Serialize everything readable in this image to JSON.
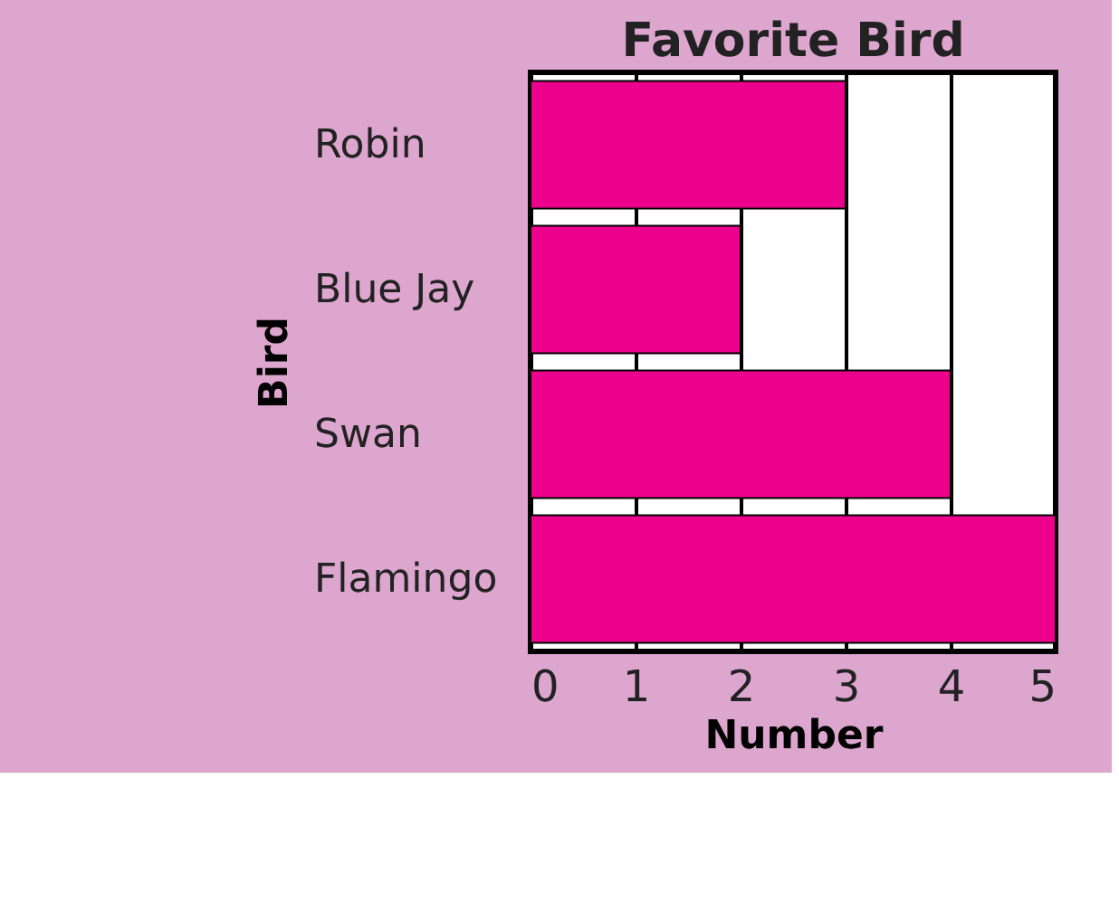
{
  "chart_data": {
    "type": "bar",
    "orientation": "horizontal",
    "title": "Favorite Bird",
    "xlabel": "Number",
    "ylabel": "Bird",
    "categories": [
      "Robin",
      "Blue Jay",
      "Swan",
      "Flamingo"
    ],
    "values": [
      3,
      2,
      4,
      5
    ],
    "color": "#ec008c",
    "xlim": [
      0,
      5
    ],
    "xticks": [
      0,
      1,
      2,
      3,
      4,
      5
    ],
    "grid": "x"
  }
}
